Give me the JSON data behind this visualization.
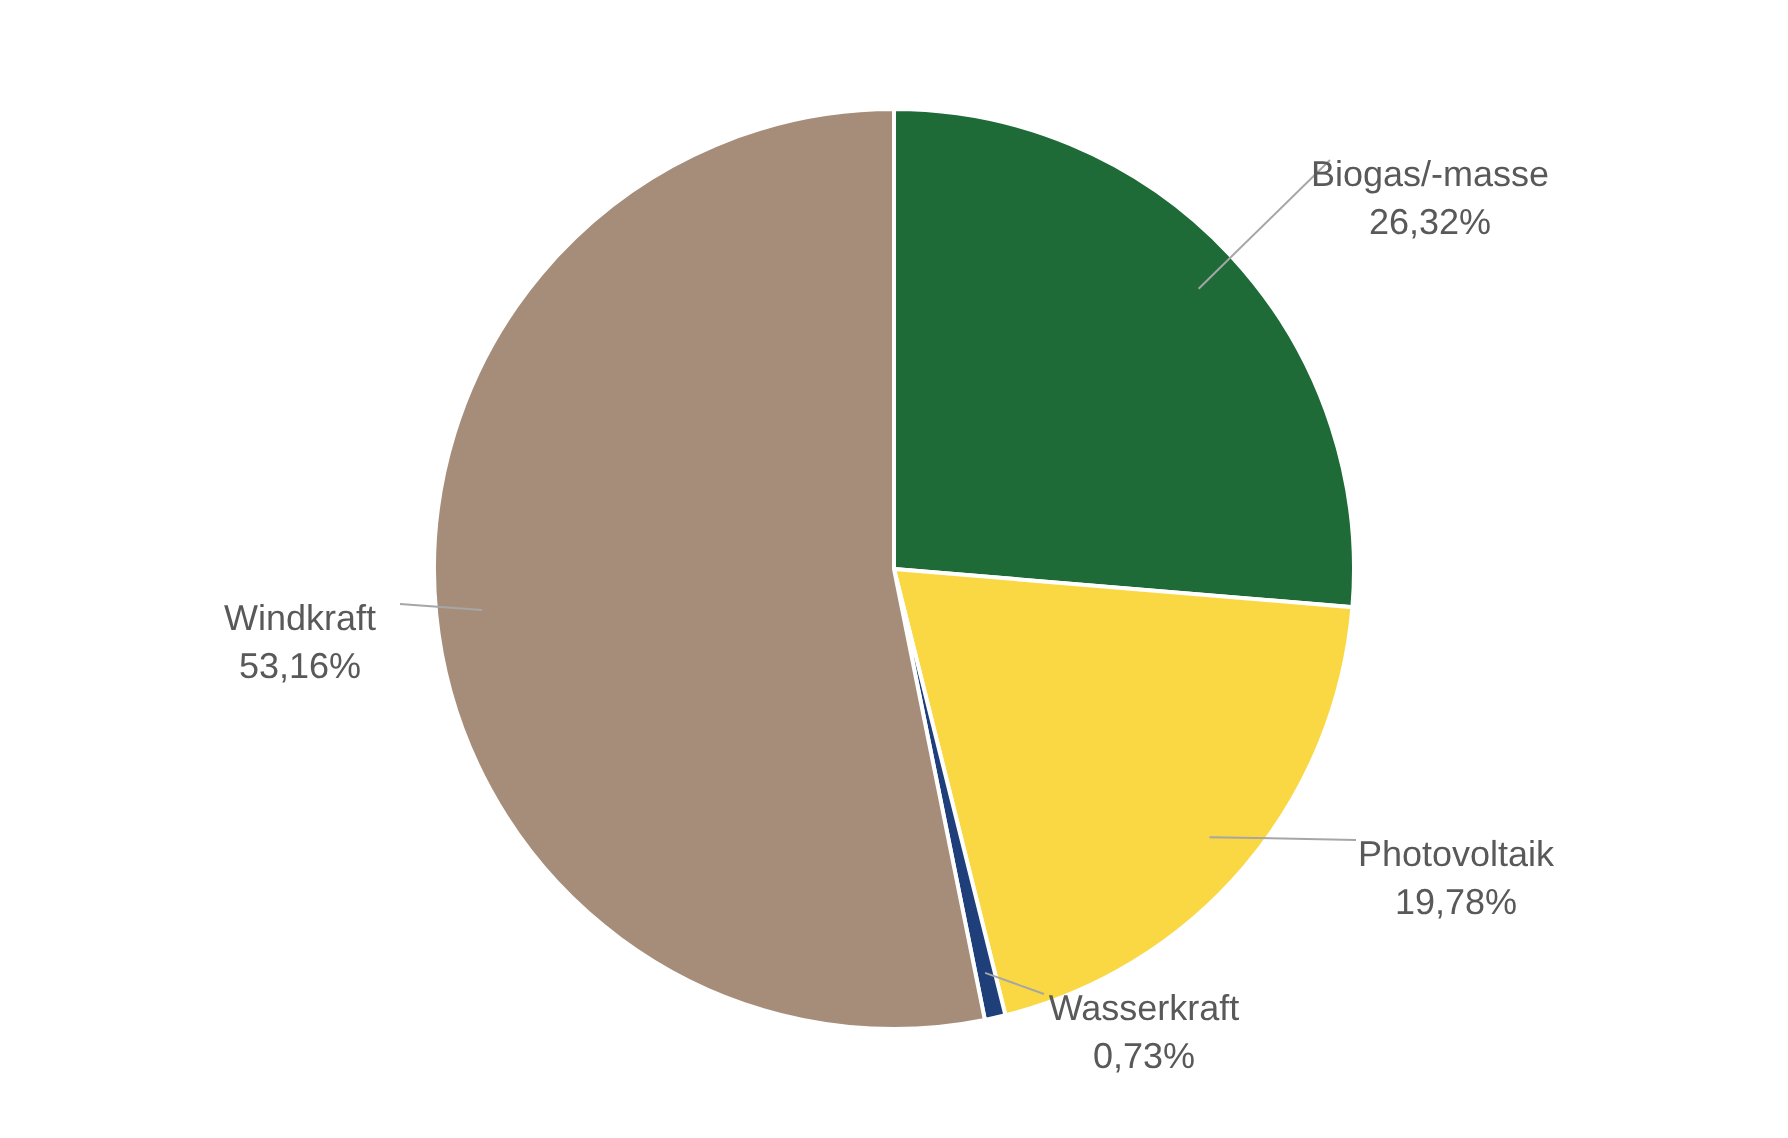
{
  "chart_data": {
    "type": "pie",
    "categories": [
      "Biogas/-masse",
      "Photovoltaik",
      "Wasserkraft",
      "Windkraft"
    ],
    "values": [
      26.32,
      19.78,
      0.73,
      53.16
    ],
    "colors": [
      "#1e6b37",
      "#fad843",
      "#1f3f7a",
      "#a68d7a"
    ],
    "value_labels": [
      "26,32%",
      "19,78%",
      "0,73%",
      "53,16%"
    ],
    "legend": false
  }
}
